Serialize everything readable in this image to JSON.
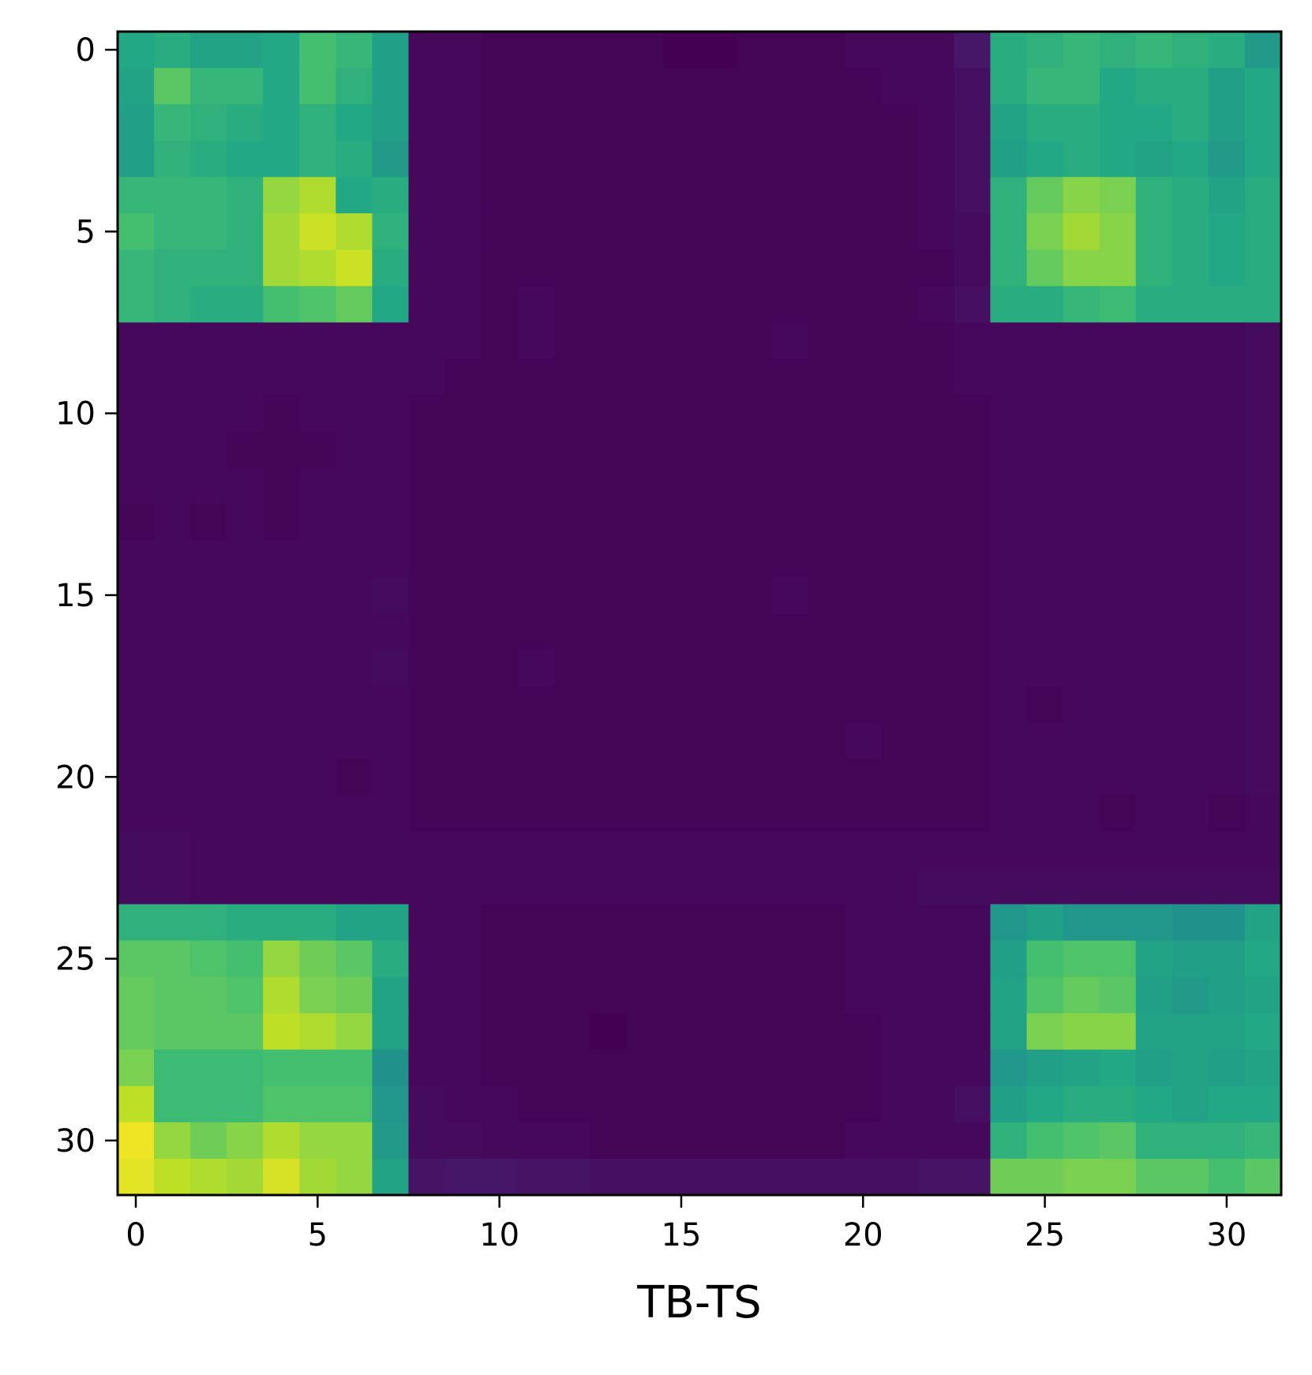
{
  "chart_data": {
    "type": "heatmap",
    "title": "",
    "xlabel": "TB-TS",
    "ylabel": "",
    "colormap": "viridis",
    "n_rows": 32,
    "n_cols": 32,
    "x_ticks": [
      0,
      5,
      10,
      15,
      20,
      25,
      30
    ],
    "y_ticks": [
      0,
      5,
      10,
      15,
      20,
      25,
      30
    ],
    "xlim": [
      -0.5,
      31.5
    ],
    "ylim": [
      31.5,
      -0.5
    ],
    "grid": false,
    "legend": "none",
    "value_scale": "normalized 0-1 (no colorbar shown)",
    "values": [
      [
        0.6,
        0.62,
        0.58,
        0.58,
        0.6,
        0.7,
        0.66,
        0.56,
        0.02,
        0.02,
        0.01,
        0.01,
        0.01,
        0.01,
        0.01,
        0.0,
        0.0,
        0.01,
        0.01,
        0.01,
        0.02,
        0.02,
        0.02,
        0.06,
        0.62,
        0.64,
        0.66,
        0.64,
        0.66,
        0.64,
        0.62,
        0.54
      ],
      [
        0.58,
        0.74,
        0.66,
        0.66,
        0.6,
        0.7,
        0.64,
        0.56,
        0.02,
        0.02,
        0.01,
        0.01,
        0.01,
        0.01,
        0.01,
        0.01,
        0.01,
        0.01,
        0.01,
        0.01,
        0.01,
        0.02,
        0.02,
        0.04,
        0.62,
        0.66,
        0.66,
        0.6,
        0.62,
        0.62,
        0.56,
        0.6
      ],
      [
        0.56,
        0.66,
        0.64,
        0.62,
        0.6,
        0.64,
        0.6,
        0.56,
        0.02,
        0.02,
        0.01,
        0.01,
        0.01,
        0.01,
        0.01,
        0.01,
        0.01,
        0.01,
        0.01,
        0.01,
        0.01,
        0.01,
        0.02,
        0.04,
        0.58,
        0.62,
        0.62,
        0.6,
        0.6,
        0.62,
        0.56,
        0.6
      ],
      [
        0.56,
        0.64,
        0.62,
        0.6,
        0.6,
        0.64,
        0.62,
        0.54,
        0.02,
        0.02,
        0.01,
        0.01,
        0.01,
        0.01,
        0.01,
        0.01,
        0.01,
        0.01,
        0.01,
        0.01,
        0.01,
        0.01,
        0.02,
        0.04,
        0.56,
        0.6,
        0.62,
        0.6,
        0.58,
        0.6,
        0.54,
        0.6
      ],
      [
        0.66,
        0.66,
        0.66,
        0.64,
        0.84,
        0.88,
        0.6,
        0.62,
        0.02,
        0.02,
        0.01,
        0.01,
        0.01,
        0.01,
        0.01,
        0.01,
        0.01,
        0.01,
        0.01,
        0.01,
        0.01,
        0.01,
        0.02,
        0.04,
        0.64,
        0.76,
        0.82,
        0.8,
        0.64,
        0.62,
        0.58,
        0.62
      ],
      [
        0.7,
        0.66,
        0.66,
        0.64,
        0.86,
        0.92,
        0.88,
        0.64,
        0.02,
        0.02,
        0.01,
        0.01,
        0.01,
        0.01,
        0.01,
        0.01,
        0.01,
        0.01,
        0.01,
        0.01,
        0.01,
        0.01,
        0.02,
        0.03,
        0.64,
        0.8,
        0.86,
        0.82,
        0.64,
        0.62,
        0.6,
        0.62
      ],
      [
        0.66,
        0.64,
        0.64,
        0.64,
        0.86,
        0.88,
        0.92,
        0.62,
        0.02,
        0.02,
        0.01,
        0.01,
        0.01,
        0.01,
        0.01,
        0.01,
        0.01,
        0.01,
        0.01,
        0.01,
        0.01,
        0.01,
        0.01,
        0.03,
        0.64,
        0.76,
        0.82,
        0.82,
        0.64,
        0.62,
        0.6,
        0.62
      ],
      [
        0.66,
        0.64,
        0.62,
        0.62,
        0.7,
        0.72,
        0.76,
        0.6,
        0.02,
        0.02,
        0.01,
        0.02,
        0.01,
        0.01,
        0.01,
        0.01,
        0.01,
        0.01,
        0.01,
        0.01,
        0.01,
        0.01,
        0.02,
        0.04,
        0.62,
        0.62,
        0.66,
        0.68,
        0.62,
        0.62,
        0.62,
        0.62
      ],
      [
        0.02,
        0.02,
        0.02,
        0.02,
        0.02,
        0.02,
        0.02,
        0.02,
        0.02,
        0.02,
        0.01,
        0.02,
        0.01,
        0.01,
        0.01,
        0.01,
        0.01,
        0.01,
        0.02,
        0.01,
        0.01,
        0.01,
        0.01,
        0.02,
        0.02,
        0.02,
        0.02,
        0.02,
        0.02,
        0.02,
        0.02,
        0.03
      ],
      [
        0.02,
        0.02,
        0.02,
        0.02,
        0.02,
        0.02,
        0.02,
        0.02,
        0.02,
        0.01,
        0.01,
        0.01,
        0.01,
        0.01,
        0.01,
        0.01,
        0.01,
        0.01,
        0.01,
        0.01,
        0.01,
        0.01,
        0.01,
        0.02,
        0.02,
        0.02,
        0.02,
        0.02,
        0.02,
        0.02,
        0.02,
        0.03
      ],
      [
        0.02,
        0.02,
        0.02,
        0.02,
        0.01,
        0.02,
        0.02,
        0.02,
        0.01,
        0.01,
        0.01,
        0.01,
        0.01,
        0.01,
        0.01,
        0.01,
        0.01,
        0.01,
        0.01,
        0.01,
        0.01,
        0.01,
        0.01,
        0.01,
        0.02,
        0.02,
        0.02,
        0.02,
        0.02,
        0.02,
        0.02,
        0.03
      ],
      [
        0.02,
        0.02,
        0.02,
        0.01,
        0.01,
        0.01,
        0.02,
        0.02,
        0.01,
        0.01,
        0.01,
        0.01,
        0.01,
        0.01,
        0.01,
        0.01,
        0.01,
        0.01,
        0.01,
        0.01,
        0.01,
        0.01,
        0.01,
        0.01,
        0.02,
        0.02,
        0.02,
        0.02,
        0.02,
        0.02,
        0.02,
        0.03
      ],
      [
        0.02,
        0.02,
        0.02,
        0.02,
        0.01,
        0.02,
        0.02,
        0.02,
        0.01,
        0.01,
        0.01,
        0.01,
        0.01,
        0.01,
        0.01,
        0.01,
        0.01,
        0.01,
        0.01,
        0.01,
        0.01,
        0.01,
        0.01,
        0.01,
        0.02,
        0.02,
        0.02,
        0.02,
        0.02,
        0.02,
        0.02,
        0.03
      ],
      [
        0.01,
        0.02,
        0.01,
        0.02,
        0.01,
        0.02,
        0.02,
        0.02,
        0.01,
        0.01,
        0.01,
        0.01,
        0.01,
        0.01,
        0.01,
        0.01,
        0.01,
        0.01,
        0.01,
        0.01,
        0.01,
        0.01,
        0.01,
        0.01,
        0.02,
        0.02,
        0.02,
        0.02,
        0.02,
        0.02,
        0.02,
        0.03
      ],
      [
        0.02,
        0.02,
        0.02,
        0.02,
        0.02,
        0.02,
        0.02,
        0.02,
        0.01,
        0.01,
        0.01,
        0.01,
        0.01,
        0.01,
        0.01,
        0.01,
        0.01,
        0.01,
        0.01,
        0.01,
        0.01,
        0.01,
        0.01,
        0.01,
        0.02,
        0.02,
        0.02,
        0.02,
        0.02,
        0.02,
        0.02,
        0.03
      ],
      [
        0.02,
        0.02,
        0.02,
        0.02,
        0.02,
        0.02,
        0.02,
        0.03,
        0.01,
        0.01,
        0.01,
        0.01,
        0.01,
        0.01,
        0.01,
        0.01,
        0.01,
        0.01,
        0.02,
        0.01,
        0.01,
        0.01,
        0.01,
        0.01,
        0.02,
        0.02,
        0.02,
        0.02,
        0.02,
        0.02,
        0.02,
        0.03
      ],
      [
        0.02,
        0.02,
        0.02,
        0.02,
        0.02,
        0.02,
        0.02,
        0.02,
        0.01,
        0.01,
        0.01,
        0.01,
        0.01,
        0.01,
        0.01,
        0.01,
        0.01,
        0.01,
        0.01,
        0.01,
        0.01,
        0.01,
        0.01,
        0.01,
        0.02,
        0.02,
        0.02,
        0.02,
        0.02,
        0.02,
        0.02,
        0.03
      ],
      [
        0.02,
        0.02,
        0.02,
        0.02,
        0.02,
        0.02,
        0.02,
        0.03,
        0.01,
        0.01,
        0.01,
        0.02,
        0.01,
        0.01,
        0.01,
        0.01,
        0.01,
        0.01,
        0.01,
        0.01,
        0.01,
        0.01,
        0.01,
        0.01,
        0.02,
        0.02,
        0.02,
        0.02,
        0.02,
        0.02,
        0.02,
        0.03
      ],
      [
        0.02,
        0.02,
        0.02,
        0.02,
        0.02,
        0.02,
        0.02,
        0.02,
        0.01,
        0.01,
        0.01,
        0.01,
        0.01,
        0.01,
        0.01,
        0.01,
        0.01,
        0.01,
        0.01,
        0.01,
        0.01,
        0.01,
        0.01,
        0.01,
        0.02,
        0.01,
        0.02,
        0.02,
        0.02,
        0.02,
        0.02,
        0.03
      ],
      [
        0.02,
        0.02,
        0.02,
        0.02,
        0.02,
        0.02,
        0.02,
        0.02,
        0.01,
        0.01,
        0.01,
        0.01,
        0.01,
        0.01,
        0.01,
        0.01,
        0.01,
        0.01,
        0.01,
        0.01,
        0.02,
        0.01,
        0.01,
        0.01,
        0.02,
        0.02,
        0.02,
        0.02,
        0.02,
        0.02,
        0.02,
        0.03
      ],
      [
        0.02,
        0.02,
        0.02,
        0.02,
        0.02,
        0.02,
        0.01,
        0.02,
        0.01,
        0.01,
        0.01,
        0.01,
        0.01,
        0.01,
        0.01,
        0.01,
        0.01,
        0.01,
        0.01,
        0.01,
        0.01,
        0.01,
        0.01,
        0.01,
        0.02,
        0.02,
        0.02,
        0.02,
        0.02,
        0.02,
        0.02,
        0.03
      ],
      [
        0.02,
        0.02,
        0.02,
        0.02,
        0.02,
        0.02,
        0.02,
        0.02,
        0.01,
        0.01,
        0.01,
        0.01,
        0.01,
        0.01,
        0.01,
        0.01,
        0.01,
        0.01,
        0.01,
        0.01,
        0.01,
        0.01,
        0.01,
        0.01,
        0.02,
        0.02,
        0.02,
        0.01,
        0.02,
        0.02,
        0.01,
        0.02
      ],
      [
        0.03,
        0.03,
        0.02,
        0.02,
        0.02,
        0.02,
        0.02,
        0.02,
        0.02,
        0.02,
        0.02,
        0.02,
        0.02,
        0.02,
        0.02,
        0.02,
        0.02,
        0.02,
        0.02,
        0.02,
        0.02,
        0.02,
        0.02,
        0.02,
        0.02,
        0.02,
        0.02,
        0.02,
        0.02,
        0.02,
        0.02,
        0.02
      ],
      [
        0.03,
        0.03,
        0.02,
        0.02,
        0.02,
        0.02,
        0.02,
        0.02,
        0.02,
        0.02,
        0.02,
        0.02,
        0.02,
        0.02,
        0.02,
        0.02,
        0.02,
        0.02,
        0.02,
        0.02,
        0.02,
        0.02,
        0.03,
        0.03,
        0.03,
        0.03,
        0.03,
        0.03,
        0.03,
        0.03,
        0.03,
        0.03
      ],
      [
        0.64,
        0.64,
        0.64,
        0.62,
        0.62,
        0.62,
        0.58,
        0.58,
        0.02,
        0.02,
        0.01,
        0.01,
        0.01,
        0.01,
        0.01,
        0.01,
        0.01,
        0.01,
        0.01,
        0.01,
        0.02,
        0.02,
        0.02,
        0.02,
        0.52,
        0.56,
        0.52,
        0.52,
        0.52,
        0.5,
        0.5,
        0.58
      ],
      [
        0.74,
        0.74,
        0.72,
        0.7,
        0.84,
        0.78,
        0.74,
        0.62,
        0.02,
        0.02,
        0.01,
        0.01,
        0.01,
        0.01,
        0.01,
        0.01,
        0.01,
        0.01,
        0.01,
        0.01,
        0.02,
        0.02,
        0.02,
        0.02,
        0.56,
        0.7,
        0.72,
        0.72,
        0.58,
        0.56,
        0.56,
        0.6
      ],
      [
        0.76,
        0.74,
        0.74,
        0.72,
        0.88,
        0.8,
        0.78,
        0.58,
        0.02,
        0.02,
        0.01,
        0.01,
        0.01,
        0.01,
        0.01,
        0.01,
        0.01,
        0.01,
        0.01,
        0.01,
        0.02,
        0.02,
        0.02,
        0.02,
        0.58,
        0.72,
        0.76,
        0.74,
        0.56,
        0.54,
        0.56,
        0.58
      ],
      [
        0.76,
        0.74,
        0.74,
        0.74,
        0.9,
        0.88,
        0.84,
        0.58,
        0.02,
        0.02,
        0.01,
        0.01,
        0.01,
        0.0,
        0.01,
        0.01,
        0.01,
        0.01,
        0.01,
        0.01,
        0.01,
        0.02,
        0.02,
        0.02,
        0.58,
        0.8,
        0.82,
        0.82,
        0.58,
        0.58,
        0.58,
        0.6
      ],
      [
        0.8,
        0.68,
        0.68,
        0.68,
        0.7,
        0.7,
        0.7,
        0.5,
        0.02,
        0.02,
        0.01,
        0.01,
        0.01,
        0.01,
        0.01,
        0.01,
        0.01,
        0.01,
        0.01,
        0.01,
        0.01,
        0.02,
        0.02,
        0.02,
        0.52,
        0.56,
        0.58,
        0.6,
        0.56,
        0.58,
        0.56,
        0.58
      ],
      [
        0.9,
        0.68,
        0.68,
        0.68,
        0.72,
        0.72,
        0.72,
        0.52,
        0.03,
        0.02,
        0.02,
        0.01,
        0.01,
        0.01,
        0.01,
        0.01,
        0.01,
        0.01,
        0.01,
        0.01,
        0.01,
        0.02,
        0.02,
        0.04,
        0.56,
        0.6,
        0.62,
        0.62,
        0.6,
        0.58,
        0.6,
        0.6
      ],
      [
        0.98,
        0.84,
        0.78,
        0.82,
        0.88,
        0.84,
        0.84,
        0.54,
        0.03,
        0.03,
        0.02,
        0.02,
        0.02,
        0.01,
        0.01,
        0.01,
        0.01,
        0.01,
        0.01,
        0.01,
        0.02,
        0.02,
        0.02,
        0.02,
        0.64,
        0.7,
        0.72,
        0.74,
        0.64,
        0.64,
        0.64,
        0.66
      ],
      [
        0.96,
        0.9,
        0.88,
        0.86,
        0.94,
        0.86,
        0.84,
        0.58,
        0.05,
        0.06,
        0.06,
        0.05,
        0.05,
        0.04,
        0.04,
        0.04,
        0.04,
        0.04,
        0.04,
        0.04,
        0.04,
        0.04,
        0.05,
        0.05,
        0.78,
        0.78,
        0.8,
        0.8,
        0.74,
        0.74,
        0.7,
        0.74
      ]
    ]
  }
}
